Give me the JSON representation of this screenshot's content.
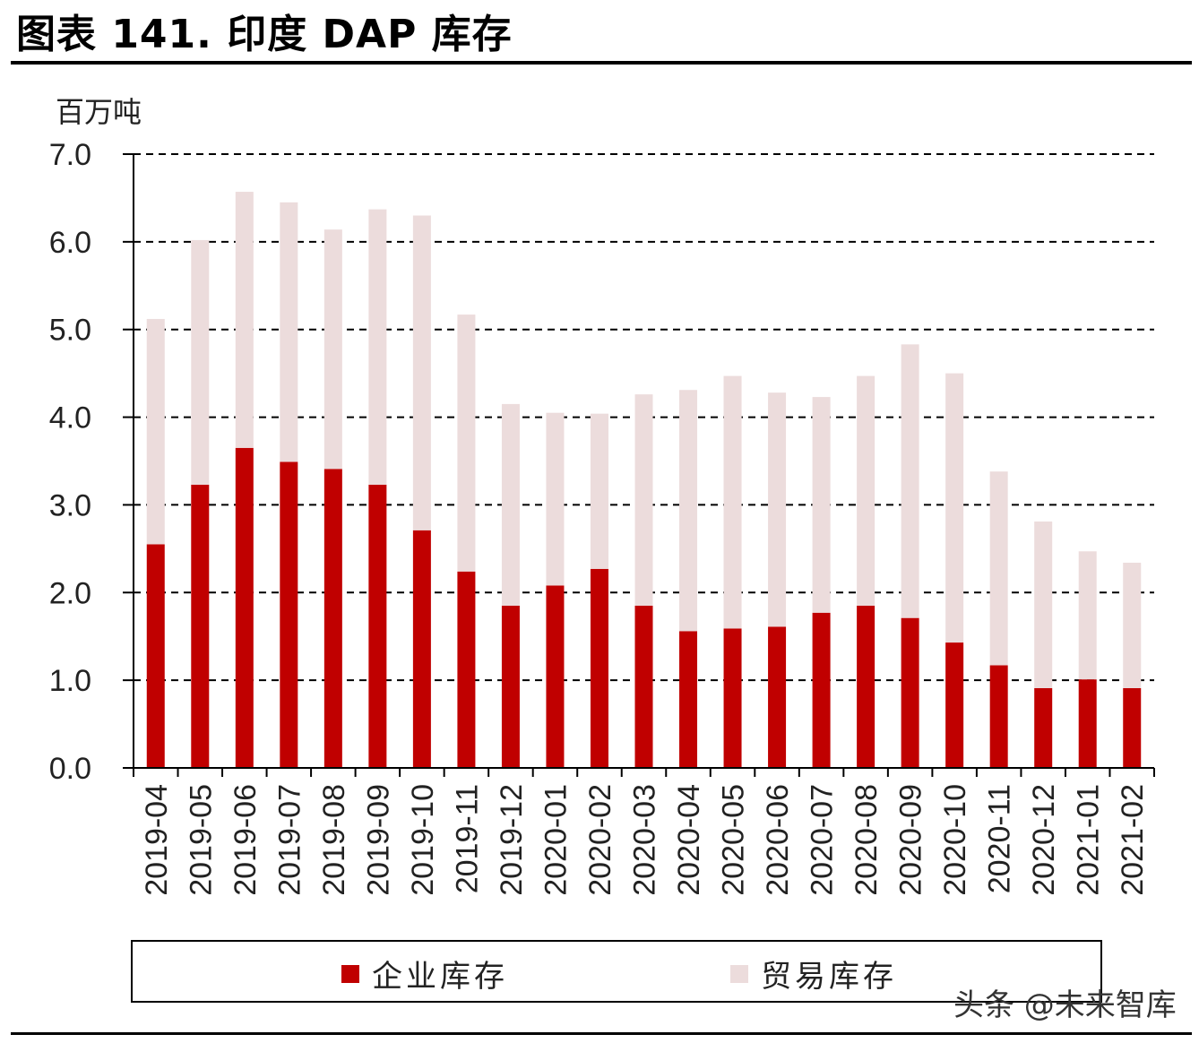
{
  "header": {
    "title": "图表 141. 印度 DAP 库存"
  },
  "watermark": "头条 @未来智库",
  "colors": {
    "enterprise": "#c00000",
    "trade": "#ecdcdc",
    "grid": "#000000"
  },
  "chart_data": {
    "type": "bar",
    "stacked": true,
    "unit_label": "百万吨",
    "ylim": [
      0,
      7
    ],
    "yticks": [
      "0.0",
      "1.0",
      "2.0",
      "3.0",
      "4.0",
      "5.0",
      "6.0",
      "7.0"
    ],
    "grid": "dashed horizontal",
    "legend_position": "bottom",
    "categories": [
      "2019-04",
      "2019-05",
      "2019-06",
      "2019-07",
      "2019-08",
      "2019-09",
      "2019-10",
      "2019-11",
      "2019-12",
      "2020-01",
      "2020-02",
      "2020-03",
      "2020-04",
      "2020-05",
      "2020-06",
      "2020-07",
      "2020-08",
      "2020-09",
      "2020-10",
      "2020-11",
      "2020-12",
      "2021-01",
      "2021-02"
    ],
    "series": [
      {
        "name": "企业库存",
        "values": [
          2.55,
          3.23,
          3.65,
          3.49,
          3.41,
          3.23,
          2.71,
          2.24,
          1.85,
          2.08,
          2.27,
          1.85,
          1.56,
          1.59,
          1.61,
          1.77,
          1.85,
          1.71,
          1.43,
          1.17,
          0.91,
          1.01,
          0.91
        ]
      },
      {
        "name": "贸易库存",
        "values": [
          2.57,
          2.79,
          2.92,
          2.96,
          2.73,
          3.14,
          3.59,
          2.93,
          2.3,
          1.97,
          1.77,
          2.41,
          2.75,
          2.88,
          2.67,
          2.46,
          2.62,
          3.12,
          3.07,
          2.21,
          1.9,
          1.46,
          1.43
        ]
      }
    ]
  }
}
